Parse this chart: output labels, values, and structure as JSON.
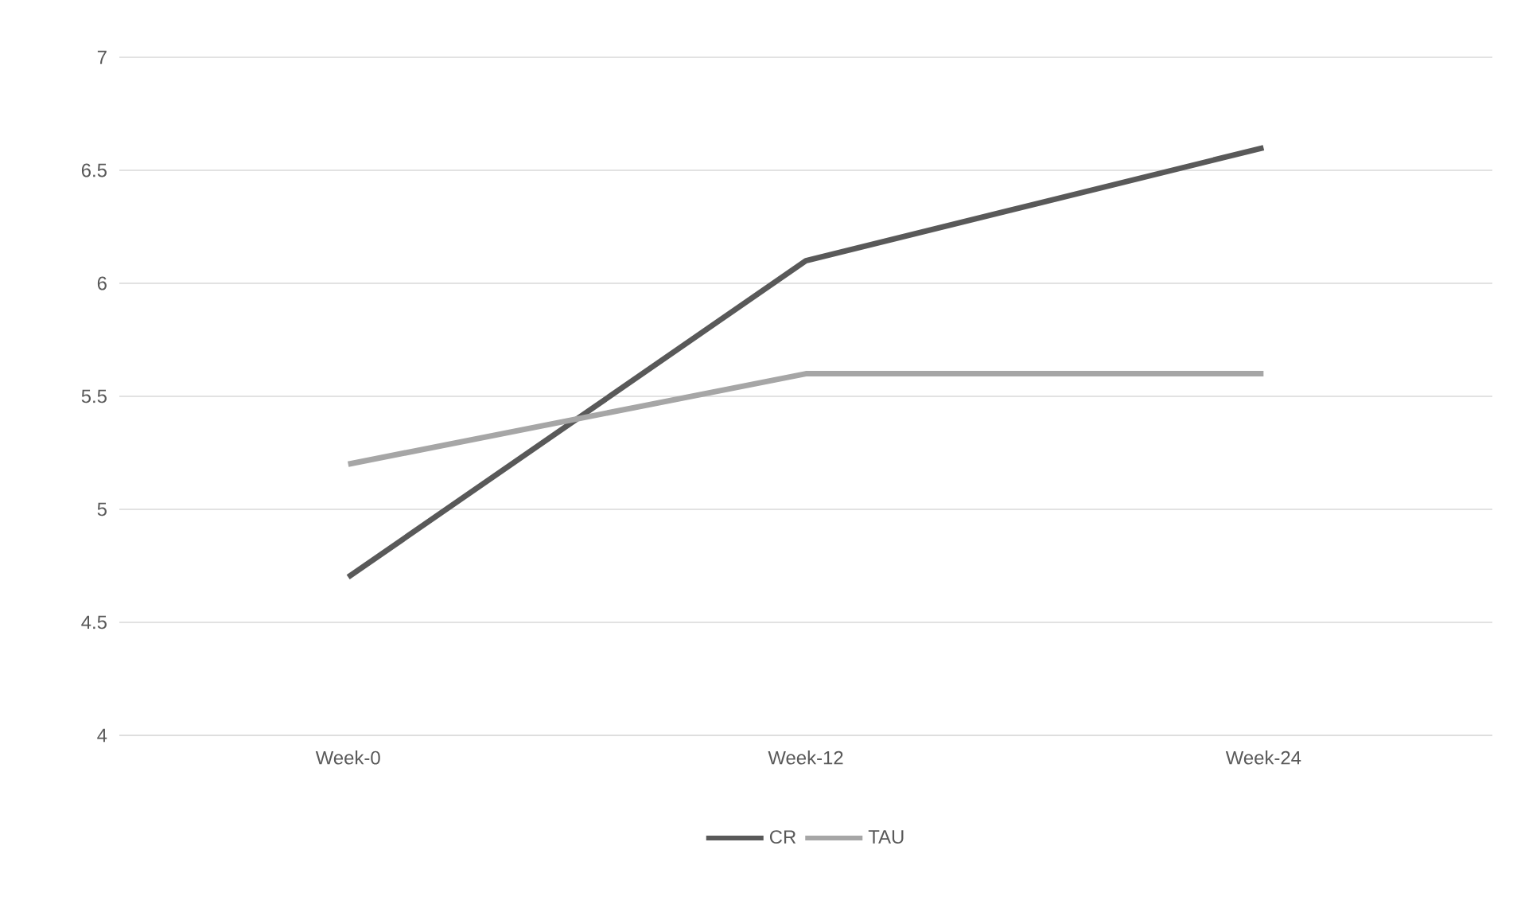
{
  "chart_data": {
    "type": "line",
    "categories": [
      "Week-0",
      "Week-12",
      "Week-24"
    ],
    "series": [
      {
        "name": "CR",
        "color": "#595959",
        "values": [
          4.7,
          6.1,
          6.6
        ]
      },
      {
        "name": "TAU",
        "color": "#a6a6a6",
        "values": [
          5.2,
          5.6,
          5.6
        ]
      }
    ],
    "ylim": [
      4,
      7
    ],
    "yticks": [
      4,
      4.5,
      5,
      5.5,
      6,
      6.5,
      7
    ],
    "grid": "y",
    "legend": "bottom"
  }
}
